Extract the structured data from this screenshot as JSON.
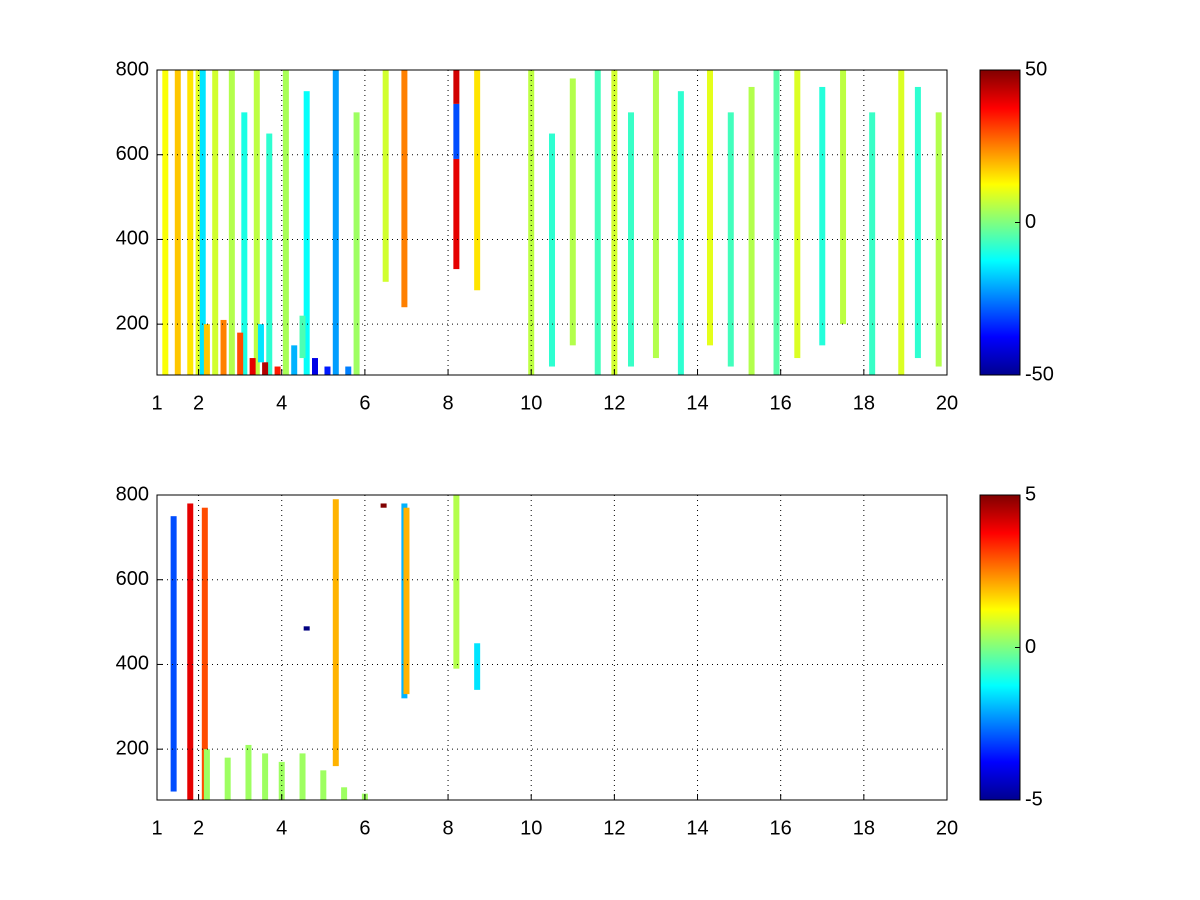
{
  "chart_data": [
    {
      "type": "heatmap",
      "colormap": "jet",
      "grid": true,
      "xlim": [
        1,
        20
      ],
      "xticks": [
        1,
        2,
        4,
        6,
        8,
        10,
        12,
        14,
        16,
        18,
        20
      ],
      "ylim": [
        80,
        800
      ],
      "yticks": [
        200,
        400,
        600,
        800
      ],
      "colorbar": {
        "lim": [
          -50,
          50
        ],
        "ticks": [
          -50,
          0,
          50
        ]
      },
      "x": [
        1.2,
        1.5,
        1.8,
        2.0,
        2.1,
        2.4,
        2.8,
        3.1,
        3.4,
        3.7,
        4.1,
        4.6,
        5.3,
        5.8,
        6.5,
        6.95,
        8.2,
        8.2,
        8.2,
        8.7,
        10.0,
        10.5,
        11.0,
        11.6,
        12.0,
        12.4,
        13.0,
        13.6,
        14.3,
        14.8,
        15.3,
        15.9,
        16.4,
        17.0,
        17.5,
        18.2,
        18.9,
        19.3,
        19.8,
        2.2,
        2.6,
        3.0,
        3.3,
        3.6,
        3.9,
        4.3,
        4.8,
        5.1,
        5.6,
        3.5,
        4.5
      ],
      "ystart": [
        80,
        80,
        80,
        80,
        80,
        80,
        80,
        80,
        80,
        80,
        80,
        80,
        80,
        80,
        300,
        240,
        330,
        590,
        720,
        280,
        80,
        100,
        150,
        80,
        80,
        100,
        120,
        80,
        150,
        100,
        80,
        80,
        120,
        150,
        200,
        80,
        80,
        120,
        100,
        80,
        80,
        80,
        80,
        80,
        80,
        80,
        80,
        80,
        80,
        110,
        120
      ],
      "yend": [
        800,
        800,
        800,
        800,
        800,
        800,
        800,
        700,
        800,
        650,
        800,
        750,
        800,
        700,
        800,
        800,
        590,
        720,
        800,
        800,
        800,
        650,
        780,
        800,
        800,
        700,
        800,
        750,
        800,
        700,
        760,
        800,
        800,
        760,
        800,
        700,
        800,
        760,
        700,
        200,
        210,
        180,
        120,
        110,
        100,
        150,
        120,
        100,
        100,
        200,
        220
      ],
      "values": [
        12,
        18,
        15,
        10,
        -15,
        8,
        5,
        -10,
        6,
        -8,
        4,
        -12,
        -22,
        3,
        8,
        25,
        40,
        -30,
        42,
        15,
        6,
        -8,
        5,
        -6,
        8,
        -7,
        5,
        -8,
        10,
        -6,
        5,
        -4,
        9,
        -9,
        6,
        -7,
        9,
        -8,
        5,
        18,
        25,
        30,
        40,
        45,
        35,
        -20,
        -40,
        -35,
        -25,
        -15,
        -5
      ]
    },
    {
      "type": "heatmap",
      "colormap": "jet",
      "grid": true,
      "xlim": [
        1,
        20
      ],
      "xticks": [
        1,
        2,
        4,
        6,
        8,
        10,
        12,
        14,
        16,
        18,
        20
      ],
      "ylim": [
        80,
        800
      ],
      "yticks": [
        200,
        400,
        600,
        800
      ],
      "colorbar": {
        "lim": [
          -5,
          5
        ],
        "ticks": [
          -5,
          0,
          5
        ]
      },
      "x": [
        1.4,
        1.8,
        2.15,
        5.3,
        6.45,
        6.95,
        7.0,
        8.2,
        8.7,
        4.6,
        2.2,
        2.7,
        3.2,
        3.6,
        4.0,
        4.5,
        5.0,
        5.5,
        6.0
      ],
      "ystart": [
        100,
        80,
        80,
        160,
        770,
        320,
        330,
        390,
        340,
        480,
        80,
        80,
        80,
        80,
        80,
        80,
        80,
        80,
        80
      ],
      "yend": [
        750,
        780,
        770,
        790,
        780,
        780,
        770,
        800,
        450,
        490,
        200,
        180,
        210,
        190,
        170,
        190,
        150,
        110,
        95
      ],
      "values": [
        -3,
        4,
        3,
        2,
        5,
        -2,
        2,
        0.5,
        -1.5,
        -5,
        0.3,
        0.3,
        0.3,
        0.3,
        0.3,
        0.3,
        0.3,
        0.3,
        0.3
      ]
    }
  ]
}
